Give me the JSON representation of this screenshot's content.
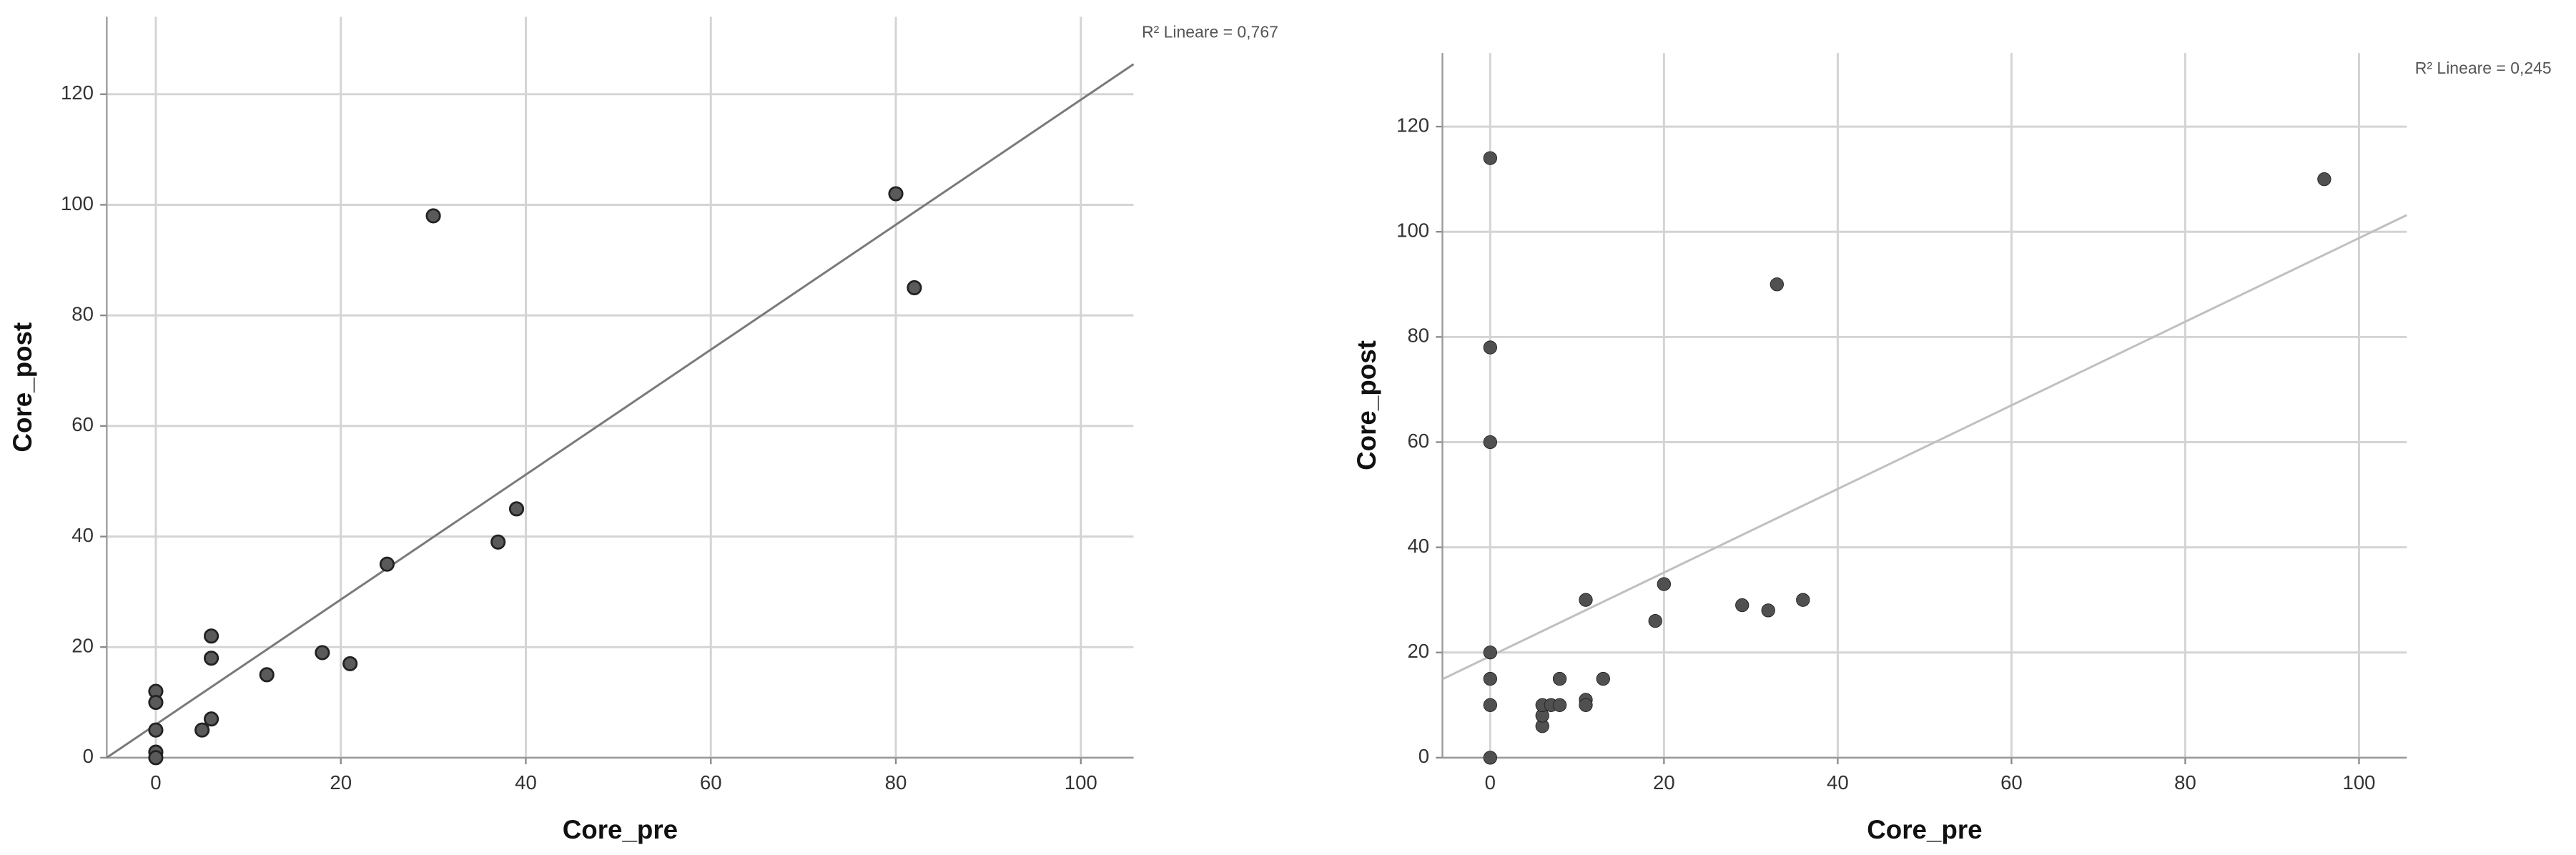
{
  "chart_data": [
    {
      "type": "scatter",
      "xlabel": "Core_pre",
      "ylabel": "Core_post",
      "annotation": "R² Lineare = 0,767",
      "x": [
        0,
        0,
        0,
        0,
        0,
        5,
        6,
        6,
        6,
        12,
        18,
        21,
        25,
        30,
        37,
        39,
        80,
        82
      ],
      "values": [
        12,
        10,
        5,
        1,
        0,
        5,
        7,
        18,
        22,
        15,
        19,
        17,
        35,
        98,
        39,
        45,
        102,
        85
      ],
      "color": "#5a5a5a",
      "xlim": [
        -5.3,
        105.7
      ],
      "ylim": [
        0,
        134
      ],
      "xticks": [
        0,
        20,
        40,
        60,
        80,
        100
      ],
      "yticks": [
        0,
        20,
        40,
        60,
        80,
        100,
        120
      ],
      "grid": true,
      "fit": {
        "intercept": 6,
        "slope": 1.13,
        "color": "#7a7a7a"
      }
    },
    {
      "type": "scatter",
      "xlabel": "Core_pre",
      "ylabel": "Core_post",
      "annotation": "R² Lineare = 0,245",
      "x": [
        0,
        0,
        0,
        0,
        0,
        0,
        0,
        6,
        6,
        6,
        7,
        8,
        8,
        11,
        11,
        11,
        13,
        19,
        20,
        29,
        32,
        36,
        33,
        96
      ],
      "values": [
        114,
        78,
        60,
        20,
        15,
        10,
        0,
        6,
        8,
        10,
        10,
        10,
        15,
        30,
        11,
        10,
        15,
        26,
        33,
        29,
        28,
        30,
        90,
        110
      ],
      "color": "#505050",
      "xlim": [
        -5.5,
        105.5
      ],
      "ylim": [
        0,
        134
      ],
      "xticks": [
        0,
        20,
        40,
        60,
        80,
        100
      ],
      "yticks": [
        0,
        20,
        40,
        60,
        80,
        100,
        120
      ],
      "grid": true,
      "fit": {
        "intercept": 19.3,
        "slope": 0.795,
        "color": "#c0c0c0"
      }
    }
  ]
}
